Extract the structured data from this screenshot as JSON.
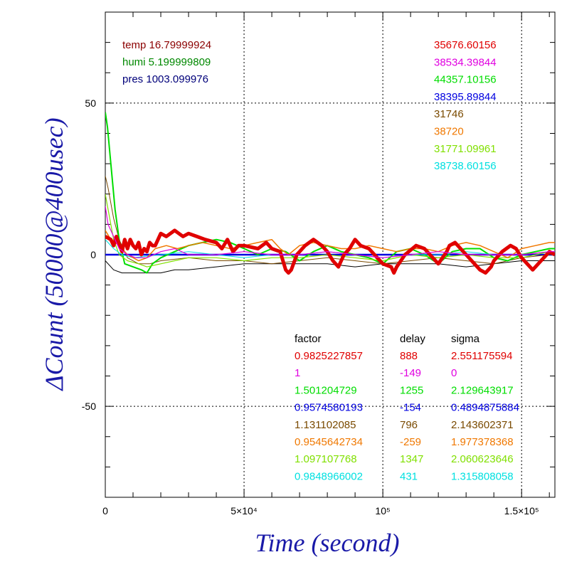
{
  "chart_data": {
    "type": "line",
    "xlabel": "Time (second)",
    "ylabel": "ΔCount (50000@400usec)",
    "xlim": [
      0,
      162000
    ],
    "ylim": [
      -80,
      80
    ],
    "x_ticks": [
      {
        "value": 0,
        "label": "0"
      },
      {
        "value": 50000,
        "label": "5×10⁴"
      },
      {
        "value": 100000,
        "label": "10⁵"
      },
      {
        "value": 150000,
        "label": "1.5×10⁵"
      }
    ],
    "y_ticks": [
      {
        "value": 50,
        "label": "50"
      },
      {
        "value": 0,
        "label": "0"
      },
      {
        "value": -50,
        "label": "-50"
      }
    ],
    "grid": "dotted at labeled ticks",
    "env": [
      {
        "text": "temp 16.79999924",
        "color": "#8b0000"
      },
      {
        "text": "humi 5.199999809",
        "color": "#008800"
      },
      {
        "text": "pres 1003.099976",
        "color": "#00007a"
      }
    ],
    "offsets": [
      {
        "text": "35676.60156",
        "color": "#e00000"
      },
      {
        "text": "38534.39844",
        "color": "#e000e0"
      },
      {
        "text": "44357.10156",
        "color": "#00dd00"
      },
      {
        "text": "38395.89844",
        "color": "#0000e0"
      },
      {
        "text": "31746",
        "color": "#7a4a00"
      },
      {
        "text": "38720",
        "color": "#f07800"
      },
      {
        "text": "31771.09961",
        "color": "#80e000"
      },
      {
        "text": "38738.60156",
        "color": "#00e0e0"
      }
    ],
    "table": {
      "headers": [
        "factor",
        "delay",
        "sigma"
      ],
      "rows": [
        {
          "factor": "0.9825227857",
          "delay": "888",
          "sigma": "2.551175594",
          "color": "#e00000"
        },
        {
          "factor": "1",
          "delay": "-149",
          "sigma": "0",
          "color": "#e000e0"
        },
        {
          "factor": "1.501204729",
          "delay": "1255",
          "sigma": "2.129643917",
          "color": "#00dd00"
        },
        {
          "factor": "0.9574580193",
          "delay": "-154",
          "sigma": "0.4894875884",
          "color": "#0000e0"
        },
        {
          "factor": "1.131102085",
          "delay": "796",
          "sigma": "2.143602371",
          "color": "#7a4a00"
        },
        {
          "factor": "0.9545642734",
          "delay": "-259",
          "sigma": "1.977378368",
          "color": "#f07800"
        },
        {
          "factor": "1.097107768",
          "delay": "1347",
          "sigma": "2.060623646",
          "color": "#80e000"
        },
        {
          "factor": "0.9848966002",
          "delay": "431",
          "sigma": "1.315808058",
          "color": "#00e0e0"
        }
      ]
    },
    "series": [
      {
        "color": "#000000",
        "width": 1,
        "x": [
          0,
          3000,
          6000,
          10000,
          15000,
          20000,
          25000,
          30000,
          40000,
          50000,
          60000,
          70000,
          80000,
          90000,
          100000,
          110000,
          120000,
          130000,
          140000,
          150000,
          160000,
          162000
        ],
        "y": [
          -2,
          -5,
          -6,
          -6,
          -6,
          -6,
          -5,
          -5,
          -4,
          -3,
          -3,
          -3,
          -3,
          -4,
          -3,
          -3,
          -3,
          -4,
          -3,
          -2,
          -2,
          -2
        ]
      },
      {
        "color": "#0000e0",
        "width": 2.5,
        "x": [
          0,
          5000,
          10000,
          20000,
          30000,
          40000,
          50000,
          60000,
          70000,
          80000,
          90000,
          100000,
          110000,
          120000,
          130000,
          140000,
          150000,
          160000,
          162000
        ],
        "y": [
          0,
          0,
          0,
          0,
          0,
          0,
          0,
          0,
          0,
          0,
          0,
          0,
          0,
          0,
          0,
          0,
          0,
          0,
          0
        ]
      },
      {
        "color": "#7a4a00",
        "width": 1,
        "x": [
          0,
          1000,
          3000,
          5000,
          8000,
          12000,
          16000,
          20000,
          30000,
          40000,
          50000,
          60000,
          70000,
          80000,
          90000,
          100000,
          110000,
          120000,
          130000,
          140000,
          150000,
          160000,
          162000
        ],
        "y": [
          26,
          22,
          12,
          5,
          -1,
          -3,
          -3,
          -2,
          -1,
          -2,
          -2,
          -3,
          -2,
          -1,
          -2,
          -3,
          -2,
          -1,
          -2,
          -3,
          -1,
          0,
          0
        ]
      },
      {
        "color": "#00dd00",
        "width": 2,
        "x": [
          0,
          800,
          2000,
          3500,
          5000,
          7000,
          10000,
          13000,
          15000,
          17000,
          20000,
          25000,
          30000,
          35000,
          40000,
          45000,
          50000,
          55000,
          60000,
          65000,
          70000,
          75000,
          80000,
          85000,
          90000,
          95000,
          100000,
          105000,
          110000,
          115000,
          120000,
          125000,
          130000,
          135000,
          140000,
          145000,
          150000,
          155000,
          160000,
          162000
        ],
        "y": [
          47,
          42,
          30,
          15,
          5,
          -3,
          -4,
          -5,
          -6,
          -3,
          -1,
          1,
          3,
          4,
          5,
          4,
          2,
          0,
          2,
          1,
          -2,
          1,
          3,
          1,
          0,
          -1,
          -3,
          1,
          2,
          0,
          -3,
          1,
          2,
          2,
          -1,
          -2,
          0,
          1,
          2,
          2
        ]
      },
      {
        "color": "#80e000",
        "width": 1.2,
        "x": [
          0,
          1000,
          3000,
          5000,
          8000,
          12000,
          15000,
          20000,
          25000,
          30000,
          40000,
          50000,
          60000,
          70000,
          80000,
          90000,
          100000,
          110000,
          120000,
          130000,
          140000,
          150000,
          160000,
          162000
        ],
        "y": [
          20,
          15,
          5,
          0,
          -2,
          -3,
          -4,
          -3,
          -2,
          -1,
          -1,
          -2,
          -1,
          -1,
          0,
          -1,
          -2,
          0,
          -1,
          0,
          -1,
          -1,
          1,
          1
        ]
      },
      {
        "color": "#00e0e0",
        "width": 1,
        "x": [
          0,
          3000,
          6000,
          10000,
          20000,
          30000,
          40000,
          50000,
          60000,
          70000,
          80000,
          90000,
          100000,
          110000,
          120000,
          130000,
          140000,
          150000,
          160000,
          162000
        ],
        "y": [
          5,
          2,
          0,
          -1,
          0,
          1,
          0,
          -1,
          0,
          0,
          1,
          0,
          -1,
          0,
          0,
          1,
          0,
          0,
          1,
          1
        ]
      },
      {
        "color": "#f07800",
        "width": 1.5,
        "x": [
          0,
          2000,
          5000,
          8000,
          12000,
          15000,
          18000,
          22000,
          26000,
          30000,
          35000,
          40000,
          45000,
          50000,
          55000,
          60000,
          63000,
          66000,
          70000,
          75000,
          80000,
          85000,
          90000,
          95000,
          100000,
          105000,
          110000,
          115000,
          120000,
          125000,
          130000,
          135000,
          140000,
          145000,
          150000,
          155000,
          160000,
          162000
        ],
        "y": [
          8,
          5,
          3,
          0,
          -2,
          -1,
          2,
          3,
          2,
          3,
          4,
          3,
          2,
          3,
          4,
          5,
          2,
          0,
          3,
          4,
          3,
          2,
          2,
          3,
          2,
          1,
          2,
          2,
          1,
          3,
          4,
          3,
          1,
          -1,
          2,
          3,
          4,
          4
        ]
      },
      {
        "color": "#e00000",
        "width": 5,
        "x": [
          0,
          2000,
          3000,
          4000,
          6000,
          7000,
          8000,
          9000,
          10000,
          11000,
          12000,
          13000,
          14000,
          15000,
          16000,
          17000,
          18000,
          19000,
          20000,
          22000,
          25000,
          28000,
          30000,
          33000,
          36000,
          40000,
          42000,
          44000,
          46000,
          48000,
          50000,
          55000,
          58000,
          60000,
          63000,
          65000,
          66000,
          67000,
          69000,
          72000,
          75000,
          78000,
          80000,
          82000,
          84000,
          86000,
          88000,
          90000,
          92000,
          95000,
          98000,
          100000,
          103000,
          104000,
          105000,
          108000,
          112000,
          115000,
          118000,
          120000,
          123000,
          124000,
          126000,
          130000,
          133000,
          135000,
          137000,
          139000,
          140000,
          143000,
          146000,
          148000,
          150000,
          154000,
          158000,
          160000,
          162000
        ],
        "y": [
          6,
          5,
          3,
          6,
          1,
          5,
          2,
          5,
          3,
          2,
          4,
          0,
          2,
          1,
          4,
          3,
          3,
          5,
          7,
          6,
          8,
          6,
          7,
          6,
          5,
          4,
          2,
          5,
          1,
          3,
          3,
          2,
          4,
          2,
          1,
          -5,
          -6,
          -5,
          0,
          3,
          5,
          3,
          1,
          -2,
          -4,
          0,
          2,
          5,
          3,
          2,
          -1,
          -3,
          -4,
          -6,
          -4,
          0,
          3,
          2,
          -1,
          -3,
          1,
          3,
          4,
          0,
          -3,
          -5,
          -6,
          -4,
          -2,
          1,
          3,
          2,
          -1,
          -5,
          -1,
          1,
          0
        ]
      },
      {
        "color": "#e000e0",
        "width": 1.2,
        "x": [
          0,
          1000,
          3000,
          5000,
          8000,
          11000,
          15000,
          20000,
          25000,
          30000,
          40000,
          50000,
          60000,
          70000,
          80000,
          90000,
          100000,
          110000,
          120000,
          130000,
          140000,
          150000,
          160000,
          162000
        ],
        "y": [
          16,
          10,
          6,
          2,
          0,
          -1,
          -1,
          1,
          2,
          0,
          0,
          1,
          0,
          0,
          1,
          0,
          -1,
          0,
          1,
          0,
          0,
          0,
          1,
          1
        ]
      }
    ]
  }
}
